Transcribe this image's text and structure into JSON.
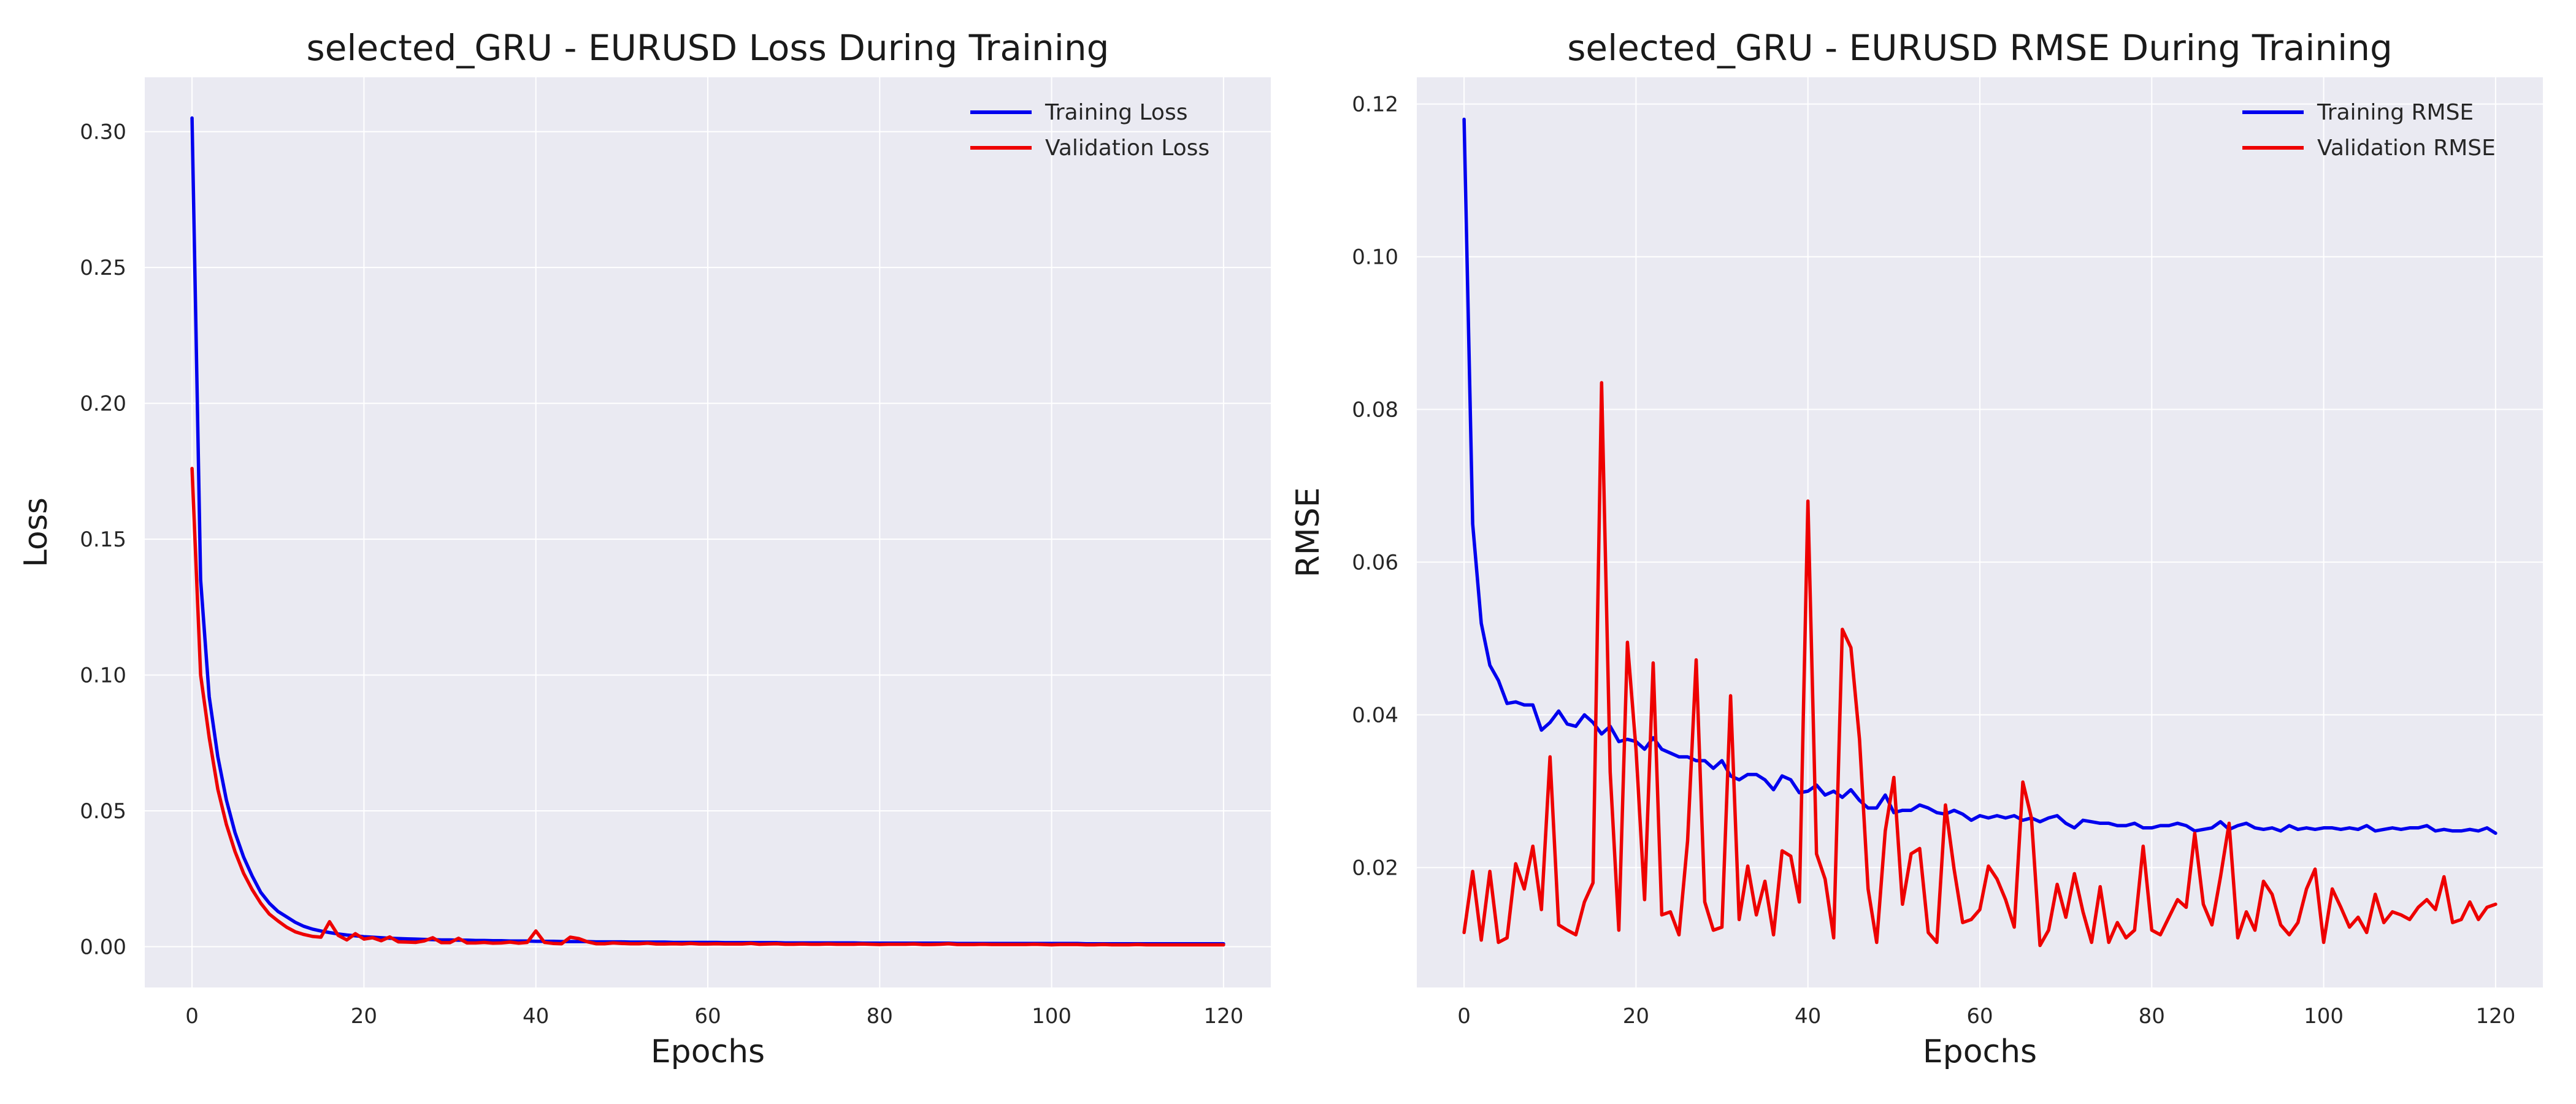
{
  "chart_data": [
    {
      "type": "line",
      "title": "selected_GRU - EURUSD Loss During Training",
      "xlabel": "Epochs",
      "ylabel": "Loss",
      "xlim": [
        -5.5,
        125.5
      ],
      "ylim": [
        -0.015,
        0.32
      ],
      "xticks": [
        0,
        20,
        40,
        60,
        80,
        100,
        120
      ],
      "yticks": [
        0.0,
        0.05,
        0.1,
        0.15,
        0.2,
        0.25,
        0.3
      ],
      "ytick_labels": [
        "0.00",
        "0.05",
        "0.10",
        "0.15",
        "0.20",
        "0.25",
        "0.30"
      ],
      "grid": true,
      "legend_position": "top-right",
      "series": [
        {
          "name": "Training Loss",
          "color": "#0000ee",
          "x": [
            0,
            1,
            2,
            3,
            4,
            5,
            6,
            7,
            8,
            9,
            10,
            11,
            12,
            13,
            14,
            15,
            16,
            17,
            18,
            19,
            20,
            21,
            22,
            23,
            24,
            25,
            26,
            27,
            28,
            29,
            30,
            31,
            32,
            33,
            34,
            35,
            36,
            37,
            38,
            39,
            40,
            41,
            42,
            43,
            44,
            45,
            46,
            47,
            48,
            49,
            50,
            51,
            52,
            53,
            54,
            55,
            56,
            57,
            58,
            59,
            60,
            61,
            62,
            63,
            64,
            65,
            66,
            67,
            68,
            69,
            70,
            71,
            72,
            73,
            74,
            75,
            76,
            77,
            78,
            79,
            80,
            81,
            82,
            83,
            84,
            85,
            86,
            87,
            88,
            89,
            90,
            91,
            92,
            93,
            94,
            95,
            96,
            97,
            98,
            99,
            100,
            101,
            102,
            103,
            104,
            105,
            106,
            107,
            108,
            109,
            110,
            111,
            112,
            113,
            114,
            115,
            116,
            117,
            118,
            119,
            120
          ],
          "values": [
            0.305,
            0.135,
            0.092,
            0.07,
            0.054,
            0.042,
            0.033,
            0.026,
            0.02,
            0.016,
            0.013,
            0.011,
            0.009,
            0.0075,
            0.0065,
            0.0058,
            0.0052,
            0.0047,
            0.0043,
            0.004,
            0.0037,
            0.0035,
            0.0033,
            0.0031,
            0.003,
            0.0029,
            0.0028,
            0.0027,
            0.0026,
            0.0025,
            0.0025,
            0.0024,
            0.0024,
            0.0023,
            0.0023,
            0.0022,
            0.0022,
            0.0021,
            0.0021,
            0.0021,
            0.002,
            0.002,
            0.002,
            0.0019,
            0.0019,
            0.0019,
            0.0019,
            0.0018,
            0.0018,
            0.0018,
            0.0018,
            0.0017,
            0.0017,
            0.0017,
            0.0017,
            0.0017,
            0.0016,
            0.0016,
            0.0016,
            0.0016,
            0.0016,
            0.0016,
            0.0015,
            0.0015,
            0.0015,
            0.0015,
            0.0015,
            0.0015,
            0.0015,
            0.0014,
            0.0014,
            0.0014,
            0.0014,
            0.0014,
            0.0014,
            0.0014,
            0.0014,
            0.0014,
            0.0013,
            0.0013,
            0.0013,
            0.0013,
            0.0013,
            0.0013,
            0.0013,
            0.0013,
            0.0013,
            0.0013,
            0.0013,
            0.0012,
            0.0012,
            0.0012,
            0.0012,
            0.0012,
            0.0012,
            0.0012,
            0.0012,
            0.0012,
            0.0012,
            0.0012,
            0.0012,
            0.0012,
            0.0012,
            0.0012,
            0.0011,
            0.0011,
            0.0011,
            0.0011,
            0.0011,
            0.0011,
            0.0011,
            0.0011,
            0.0011,
            0.0011,
            0.0011,
            0.0011,
            0.0011,
            0.0011,
            0.0011,
            0.0011,
            0.0011
          ]
        },
        {
          "name": "Validation Loss",
          "color": "#ee0000",
          "x": [
            0,
            1,
            2,
            3,
            4,
            5,
            6,
            7,
            8,
            9,
            10,
            11,
            12,
            13,
            14,
            15,
            16,
            17,
            18,
            19,
            20,
            21,
            22,
            23,
            24,
            25,
            26,
            27,
            28,
            29,
            30,
            31,
            32,
            33,
            34,
            35,
            36,
            37,
            38,
            39,
            40,
            41,
            42,
            43,
            44,
            45,
            46,
            47,
            48,
            49,
            50,
            51,
            52,
            53,
            54,
            55,
            56,
            57,
            58,
            59,
            60,
            61,
            62,
            63,
            64,
            65,
            66,
            67,
            68,
            69,
            70,
            71,
            72,
            73,
            74,
            75,
            76,
            77,
            78,
            79,
            80,
            81,
            82,
            83,
            84,
            85,
            86,
            87,
            88,
            89,
            90,
            91,
            92,
            93,
            94,
            95,
            96,
            97,
            98,
            99,
            100,
            101,
            102,
            103,
            104,
            105,
            106,
            107,
            108,
            109,
            110,
            111,
            112,
            113,
            114,
            115,
            116,
            117,
            118,
            119,
            120
          ],
          "values": [
            0.176,
            0.1,
            0.077,
            0.058,
            0.045,
            0.035,
            0.027,
            0.021,
            0.016,
            0.012,
            0.0095,
            0.0072,
            0.0055,
            0.0045,
            0.0038,
            0.0035,
            0.0092,
            0.0042,
            0.0025,
            0.0048,
            0.0028,
            0.0033,
            0.0022,
            0.0036,
            0.0018,
            0.0017,
            0.0016,
            0.0021,
            0.0033,
            0.0015,
            0.0015,
            0.0031,
            0.0014,
            0.0014,
            0.0016,
            0.0013,
            0.0014,
            0.0017,
            0.0013,
            0.0016,
            0.0058,
            0.0016,
            0.0012,
            0.0011,
            0.0035,
            0.003,
            0.0018,
            0.0011,
            0.0011,
            0.0014,
            0.0012,
            0.0011,
            0.0011,
            0.0013,
            0.001,
            0.001,
            0.0011,
            0.001,
            0.0012,
            0.001,
            0.001,
            0.0011,
            0.001,
            0.001,
            0.001,
            0.0012,
            0.0009,
            0.001,
            0.0011,
            0.0009,
            0.0009,
            0.001,
            0.0009,
            0.0009,
            0.001,
            0.0009,
            0.0009,
            0.0009,
            0.001,
            0.0009,
            0.0008,
            0.0009,
            0.0009,
            0.0009,
            0.001,
            0.0008,
            0.0008,
            0.0009,
            0.0011,
            0.0008,
            0.0008,
            0.0008,
            0.0009,
            0.0008,
            0.0008,
            0.0008,
            0.0008,
            0.0008,
            0.0009,
            0.0008,
            0.0007,
            0.0008,
            0.0008,
            0.0008,
            0.0007,
            0.0007,
            0.0008,
            0.0007,
            0.0007,
            0.0007,
            0.0008,
            0.0007,
            0.0007,
            0.0007,
            0.0007,
            0.0007,
            0.0007,
            0.0007,
            0.0007,
            0.0007,
            0.0007
          ]
        }
      ]
    },
    {
      "type": "line",
      "title": "selected_GRU - EURUSD RMSE During Training",
      "xlabel": "Epochs",
      "ylabel": "RMSE",
      "xlim": [
        -5.5,
        125.5
      ],
      "ylim": [
        0.0043,
        0.1235
      ],
      "xticks": [
        0,
        20,
        40,
        60,
        80,
        100,
        120
      ],
      "yticks": [
        0.02,
        0.04,
        0.06,
        0.08,
        0.1,
        0.12
      ],
      "ytick_labels": [
        "0.02",
        "0.04",
        "0.06",
        "0.08",
        "0.10",
        "0.12"
      ],
      "grid": true,
      "legend_position": "top-right",
      "series": [
        {
          "name": "Training RMSE",
          "color": "#0000ee",
          "x": [
            0,
            1,
            2,
            3,
            4,
            5,
            6,
            7,
            8,
            9,
            10,
            11,
            12,
            13,
            14,
            15,
            16,
            17,
            18,
            19,
            20,
            21,
            22,
            23,
            24,
            25,
            26,
            27,
            28,
            29,
            30,
            31,
            32,
            33,
            34,
            35,
            36,
            37,
            38,
            39,
            40,
            41,
            42,
            43,
            44,
            45,
            46,
            47,
            48,
            49,
            50,
            51,
            52,
            53,
            54,
            55,
            56,
            57,
            58,
            59,
            60,
            61,
            62,
            63,
            64,
            65,
            66,
            67,
            68,
            69,
            70,
            71,
            72,
            73,
            74,
            75,
            76,
            77,
            78,
            79,
            80,
            81,
            82,
            83,
            84,
            85,
            86,
            87,
            88,
            89,
            90,
            91,
            92,
            93,
            94,
            95,
            96,
            97,
            98,
            99,
            100,
            101,
            102,
            103,
            104,
            105,
            106,
            107,
            108,
            109,
            110,
            111,
            112,
            113,
            114,
            115,
            116,
            117,
            118,
            119,
            120
          ],
          "values": [
            0.118,
            0.065,
            0.052,
            0.0465,
            0.0445,
            0.0415,
            0.0417,
            0.0413,
            0.0413,
            0.038,
            0.039,
            0.0405,
            0.0388,
            0.0385,
            0.04,
            0.039,
            0.0375,
            0.0385,
            0.0365,
            0.0368,
            0.0365,
            0.0355,
            0.037,
            0.0355,
            0.035,
            0.0345,
            0.0345,
            0.034,
            0.034,
            0.033,
            0.034,
            0.032,
            0.0315,
            0.0322,
            0.0322,
            0.0315,
            0.0302,
            0.032,
            0.0315,
            0.0298,
            0.03,
            0.0308,
            0.0295,
            0.03,
            0.0292,
            0.0302,
            0.0288,
            0.0278,
            0.0278,
            0.0295,
            0.0272,
            0.0275,
            0.0275,
            0.0282,
            0.0278,
            0.0272,
            0.027,
            0.0275,
            0.027,
            0.0262,
            0.0268,
            0.0265,
            0.0268,
            0.0265,
            0.0268,
            0.0262,
            0.0265,
            0.026,
            0.0265,
            0.0268,
            0.0258,
            0.0252,
            0.0262,
            0.026,
            0.0258,
            0.0258,
            0.0255,
            0.0255,
            0.0258,
            0.0252,
            0.0252,
            0.0255,
            0.0255,
            0.0258,
            0.0255,
            0.0248,
            0.025,
            0.0252,
            0.026,
            0.025,
            0.0255,
            0.0258,
            0.0252,
            0.025,
            0.0252,
            0.0248,
            0.0255,
            0.025,
            0.0252,
            0.025,
            0.0252,
            0.0252,
            0.025,
            0.0252,
            0.025,
            0.0255,
            0.0248,
            0.025,
            0.0252,
            0.025,
            0.0252,
            0.0252,
            0.0255,
            0.0248,
            0.025,
            0.0248,
            0.0248,
            0.025,
            0.0248,
            0.0252,
            0.0245
          ]
        },
        {
          "name": "Validation RMSE",
          "color": "#ee0000",
          "x": [
            0,
            1,
            2,
            3,
            4,
            5,
            6,
            7,
            8,
            9,
            10,
            11,
            12,
            13,
            14,
            15,
            16,
            17,
            18,
            19,
            20,
            21,
            22,
            23,
            24,
            25,
            26,
            27,
            28,
            29,
            30,
            31,
            32,
            33,
            34,
            35,
            36,
            37,
            38,
            39,
            40,
            41,
            42,
            43,
            44,
            45,
            46,
            47,
            48,
            49,
            50,
            51,
            52,
            53,
            54,
            55,
            56,
            57,
            58,
            59,
            60,
            61,
            62,
            63,
            64,
            65,
            66,
            67,
            68,
            69,
            70,
            71,
            72,
            73,
            74,
            75,
            76,
            77,
            78,
            79,
            80,
            81,
            82,
            83,
            84,
            85,
            86,
            87,
            88,
            89,
            90,
            91,
            92,
            93,
            94,
            95,
            96,
            97,
            98,
            99,
            100,
            101,
            102,
            103,
            104,
            105,
            106,
            107,
            108,
            109,
            110,
            111,
            112,
            113,
            114,
            115,
            116,
            117,
            118,
            119,
            120
          ],
          "values": [
            0.0115,
            0.0195,
            0.0105,
            0.0195,
            0.0102,
            0.0108,
            0.0205,
            0.0172,
            0.0228,
            0.0145,
            0.0345,
            0.0125,
            0.0118,
            0.0112,
            0.0155,
            0.018,
            0.0835,
            0.0325,
            0.0118,
            0.0495,
            0.0355,
            0.0158,
            0.0468,
            0.0138,
            0.0142,
            0.0112,
            0.0235,
            0.0472,
            0.0155,
            0.0118,
            0.0122,
            0.0425,
            0.0132,
            0.0202,
            0.0138,
            0.0182,
            0.0112,
            0.0222,
            0.0215,
            0.0155,
            0.068,
            0.0218,
            0.0185,
            0.0108,
            0.0512,
            0.0488,
            0.0368,
            0.0172,
            0.0102,
            0.0248,
            0.0318,
            0.0152,
            0.0218,
            0.0225,
            0.0115,
            0.0102,
            0.0282,
            0.0198,
            0.0128,
            0.0132,
            0.0145,
            0.0202,
            0.0185,
            0.0158,
            0.0122,
            0.0312,
            0.0265,
            0.0098,
            0.0118,
            0.0178,
            0.0135,
            0.0192,
            0.0142,
            0.0102,
            0.0175,
            0.0102,
            0.0128,
            0.0108,
            0.0118,
            0.0228,
            0.0118,
            0.0112,
            0.0135,
            0.0158,
            0.0148,
            0.0245,
            0.0152,
            0.0125,
            0.0188,
            0.0258,
            0.0108,
            0.0142,
            0.0118,
            0.0182,
            0.0165,
            0.0125,
            0.0112,
            0.0128,
            0.0172,
            0.0198,
            0.0102,
            0.0172,
            0.0148,
            0.0122,
            0.0135,
            0.0115,
            0.0165,
            0.0128,
            0.0142,
            0.0138,
            0.0132,
            0.0148,
            0.0158,
            0.0145,
            0.0188,
            0.0128,
            0.0132,
            0.0155,
            0.0132,
            0.0148,
            0.0152
          ]
        }
      ]
    }
  ]
}
